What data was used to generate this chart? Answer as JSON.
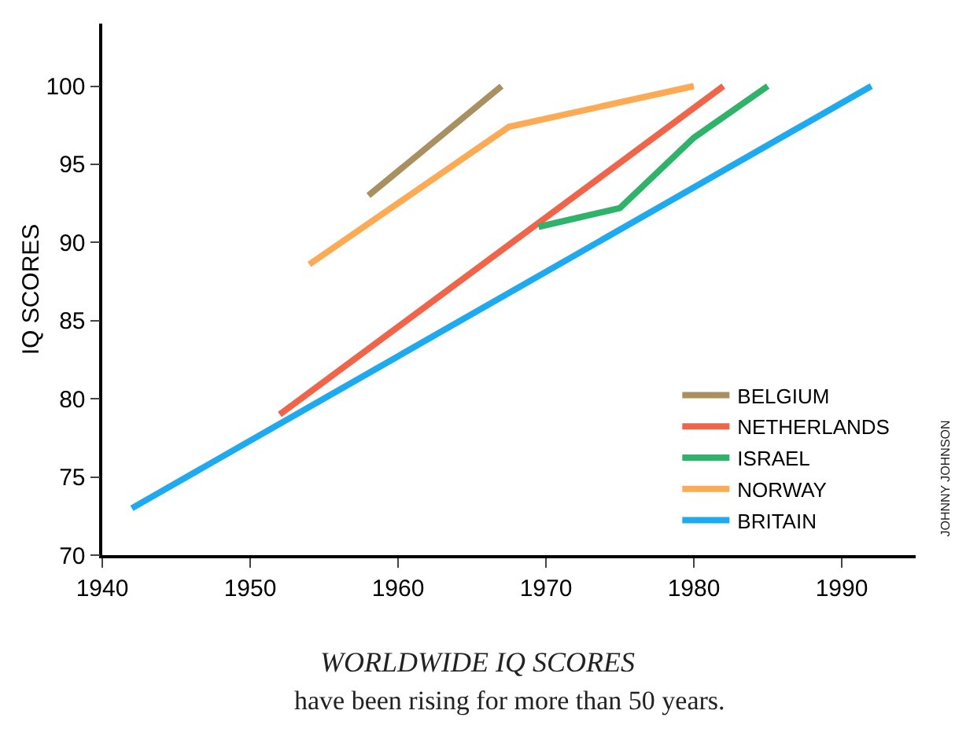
{
  "chart_data": {
    "type": "line",
    "title": "WORLDWIDE IQ SCORES",
    "subtitle": "have been rising for more than 50 years.",
    "ylabel": "IQ SCORES",
    "xlim": [
      1940,
      1995
    ],
    "xticks": [
      1940,
      1950,
      1960,
      1970,
      1980,
      1990
    ],
    "ylim": [
      70,
      104
    ],
    "yticks": [
      70,
      75,
      80,
      85,
      90,
      95,
      100
    ],
    "grid": false,
    "legend": "bottom right",
    "marker": "none",
    "line_style": "solid",
    "series": [
      {
        "name": "BELGIUM",
        "color": "#a89060",
        "x": [
          1958,
          1967
        ],
        "values": [
          93,
          100
        ]
      },
      {
        "name": "NETHERLANDS",
        "color": "#f0654a",
        "x": [
          1952,
          1982
        ],
        "values": [
          79,
          100
        ]
      },
      {
        "name": "ISRAEL",
        "color": "#2fb36a",
        "x": [
          1969.5,
          1975,
          1980,
          1985
        ],
        "values": [
          91,
          92.2,
          96.7,
          100
        ]
      },
      {
        "name": "NORWAY",
        "color": "#fdaa55",
        "x": [
          1954,
          1967.5,
          1980
        ],
        "values": [
          88.6,
          97.4,
          100
        ]
      },
      {
        "name": "BRITAIN",
        "color": "#1eaaf1",
        "x": [
          1942,
          1992
        ],
        "values": [
          73,
          100
        ]
      }
    ],
    "annotations": [
      "JOHNNY JOHNSON"
    ]
  }
}
